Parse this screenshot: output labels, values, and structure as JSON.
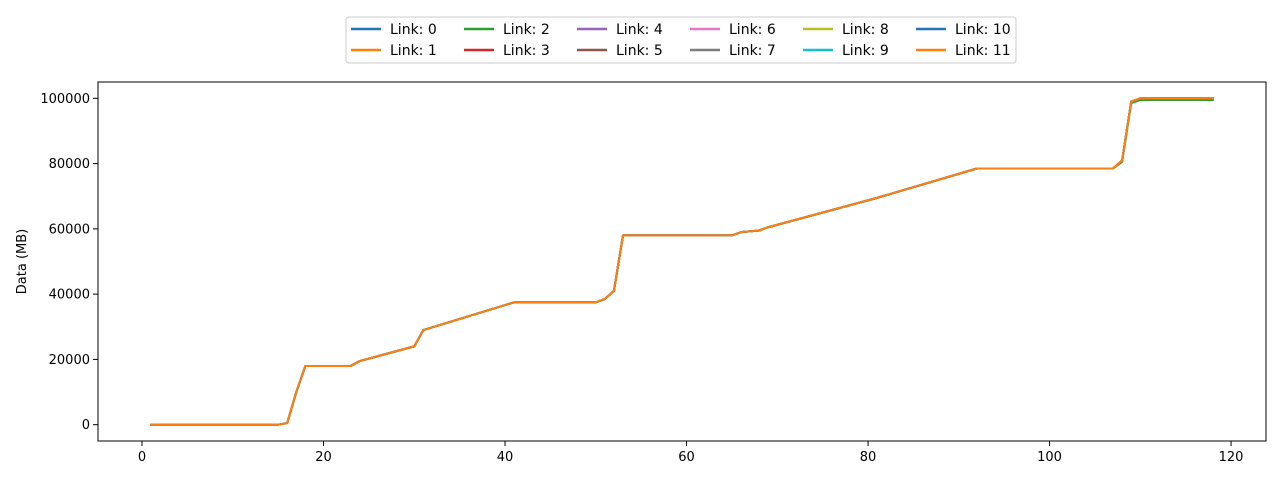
{
  "chart_data": {
    "type": "line",
    "title": "",
    "xlabel": "",
    "ylabel": "Data (MB)",
    "xlim": [
      -4.85,
      123.85
    ],
    "ylim": [
      -5000,
      105000
    ],
    "xticks": [
      0,
      20,
      40,
      60,
      80,
      100,
      120
    ],
    "yticks": [
      0,
      20000,
      40000,
      60000,
      80000,
      100000
    ],
    "grid": false,
    "legend_position": "top-center",
    "legend_columns": 6,
    "x": [
      1,
      15,
      16,
      17,
      18,
      23,
      24,
      30,
      31,
      41,
      50,
      51,
      52,
      53,
      65,
      66,
      68,
      69,
      81,
      92,
      107,
      108,
      109,
      110,
      118
    ],
    "series": [
      {
        "name": "Link: 0",
        "color": "#1f77b4",
        "values": [
          0,
          0,
          500,
          10000,
          18000,
          18000,
          19500,
          24000,
          29000,
          37500,
          37500,
          38500,
          41000,
          58000,
          58000,
          59000,
          59500,
          60500,
          69500,
          78500,
          78500,
          81000,
          99000,
          100000,
          100000
        ]
      },
      {
        "name": "Link: 1",
        "color": "#ff7f0e",
        "values": [
          0,
          0,
          500,
          10000,
          18000,
          18000,
          19500,
          24000,
          29000,
          37500,
          37500,
          38500,
          41000,
          58000,
          58000,
          59000,
          59500,
          60500,
          69500,
          78500,
          78500,
          81000,
          99000,
          100000,
          100000
        ]
      },
      {
        "name": "Link: 2",
        "color": "#2ca02c",
        "values": [
          0,
          0,
          500,
          10000,
          18000,
          18000,
          19500,
          24000,
          29000,
          37500,
          37500,
          38500,
          41000,
          58000,
          58000,
          59000,
          59500,
          60500,
          69500,
          78500,
          78500,
          80500,
          98500,
          99500,
          99500
        ]
      },
      {
        "name": "Link: 3",
        "color": "#d62728",
        "values": [
          0,
          0,
          500,
          10000,
          18000,
          18000,
          19500,
          24000,
          29000,
          37500,
          37500,
          38500,
          41000,
          58000,
          58000,
          59000,
          59500,
          60500,
          69500,
          78500,
          78500,
          81000,
          99000,
          100000,
          100000
        ]
      },
      {
        "name": "Link: 4",
        "color": "#9467bd",
        "values": [
          0,
          0,
          500,
          10000,
          18000,
          18000,
          19500,
          24000,
          29000,
          37500,
          37500,
          38500,
          41000,
          58000,
          58000,
          59000,
          59500,
          60500,
          69500,
          78500,
          78500,
          81000,
          99000,
          100000,
          100000
        ]
      },
      {
        "name": "Link: 5",
        "color": "#8c564b",
        "values": [
          0,
          0,
          500,
          10000,
          18000,
          18000,
          19500,
          24000,
          29000,
          37500,
          37500,
          38500,
          41000,
          58000,
          58000,
          59000,
          59500,
          60500,
          69500,
          78500,
          78500,
          81000,
          99000,
          100000,
          100000
        ]
      },
      {
        "name": "Link: 6",
        "color": "#e377c2",
        "values": [
          0,
          0,
          500,
          10000,
          18000,
          18000,
          19500,
          24000,
          29000,
          37500,
          37500,
          38500,
          41000,
          58000,
          58000,
          59000,
          59500,
          60500,
          69500,
          78500,
          78500,
          81000,
          99000,
          100000,
          100000
        ]
      },
      {
        "name": "Link: 7",
        "color": "#7f7f7f",
        "values": [
          0,
          0,
          500,
          10000,
          18000,
          18000,
          19500,
          24000,
          29000,
          37500,
          37500,
          38500,
          41000,
          58000,
          58000,
          59000,
          59500,
          60500,
          69500,
          78500,
          78500,
          81000,
          99000,
          100000,
          100000
        ]
      },
      {
        "name": "Link: 8",
        "color": "#bcbd22",
        "values": [
          0,
          0,
          500,
          10000,
          18000,
          18000,
          19500,
          24000,
          29000,
          37500,
          37500,
          38500,
          41000,
          58000,
          58000,
          59000,
          59500,
          60500,
          69500,
          78500,
          78500,
          81000,
          99000,
          100000,
          100000
        ]
      },
      {
        "name": "Link: 9",
        "color": "#17becf",
        "values": [
          0,
          0,
          500,
          10000,
          18000,
          18000,
          19500,
          24000,
          29000,
          37500,
          37500,
          38500,
          41000,
          58000,
          58000,
          59000,
          59500,
          60500,
          69500,
          78500,
          78500,
          81000,
          99000,
          100000,
          100000
        ]
      },
      {
        "name": "Link: 10",
        "color": "#1f77b4",
        "values": [
          0,
          0,
          500,
          10000,
          18000,
          18000,
          19500,
          24000,
          29000,
          37500,
          37500,
          38500,
          41000,
          58000,
          58000,
          59000,
          59500,
          60500,
          69500,
          78500,
          78500,
          81000,
          99000,
          100000,
          100000
        ]
      },
      {
        "name": "Link: 11",
        "color": "#ff7f0e",
        "values": [
          0,
          0,
          500,
          10000,
          18000,
          18000,
          19500,
          24000,
          29000,
          37500,
          37500,
          38500,
          41000,
          58000,
          58000,
          59000,
          59500,
          60500,
          69500,
          78500,
          78500,
          81000,
          99000,
          100000,
          100000
        ]
      }
    ]
  }
}
